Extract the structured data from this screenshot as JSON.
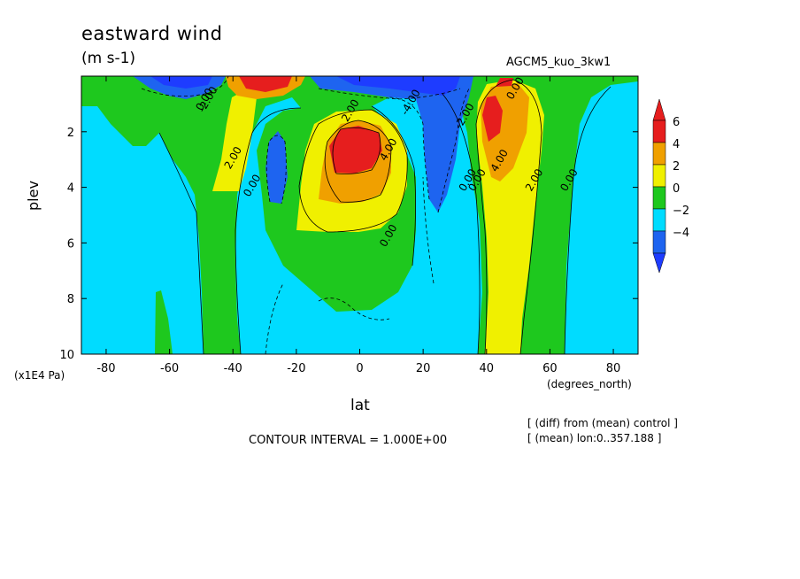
{
  "chart_data": {
    "type": "heatmap",
    "title": "eastward wind",
    "units_label": "(m s-1)",
    "run_label": "AGCM5_kuo_3kw1",
    "xlabel": "lat",
    "ylabel": "plev",
    "x_units_label": "(degrees_north)",
    "y_units_label": "(x1E4 Pa)",
    "xlim": [
      -87.8,
      87.8
    ],
    "ylim": [
      0,
      10
    ],
    "y_reversed": true,
    "xticks": [
      -80,
      -60,
      -40,
      -20,
      0,
      20,
      40,
      60,
      80
    ],
    "xtick_labels": [
      "-80",
      "-60",
      "-40",
      "-20",
      "0",
      "20",
      "40",
      "60",
      "80"
    ],
    "yticks": [
      2,
      4,
      6,
      8,
      10
    ],
    "ytick_labels": [
      "2",
      "4",
      "6",
      "8",
      "10"
    ],
    "colorbar": {
      "levels": [
        -4,
        -2,
        0,
        2,
        4,
        6
      ],
      "labels": [
        "6",
        "4",
        "2",
        "0",
        "−2",
        "−4"
      ],
      "colors": [
        "#1e64f0",
        "#00dcff",
        "#1ec81e",
        "#f0f000",
        "#f0a000",
        "#e61e1e"
      ],
      "below_color": "#1e3cff",
      "above_color": "#e61e1e"
    },
    "contour_interval_text": "CONTOUR INTERVAL = 1.000E+00",
    "footnotes": [
      "[ (diff) from (mean) control ]",
      "[ (mean) lon:0..357.188 ]"
    ],
    "contour_labels": [
      "0.00",
      "2.00",
      "0.00",
      "2.00",
      "4.00",
      "0.00",
      "-4.00",
      "-2.00",
      "0.00",
      "0.00",
      "4.00",
      "2.00",
      "0.00",
      "-2.00",
      "0.00"
    ],
    "grid": false,
    "legend": "right"
  }
}
